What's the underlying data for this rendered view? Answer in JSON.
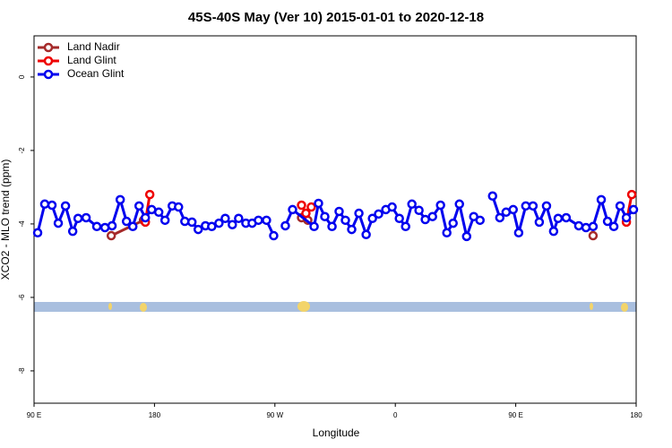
{
  "chart_data": {
    "type": "line",
    "title": "45S-40S May (Ver 10)   2015-01-01 to 2020-12-18",
    "xlabel": "Longitude",
    "ylabel": "XCO2 - MLO trend (ppm)",
    "xlim": [
      90,
      540
    ],
    "ylim": [
      -8.88,
      1.12
    ],
    "xticks": [
      {
        "value": 90,
        "label": "90 E"
      },
      180,
      {
        "value": 270,
        "label": "90 W"
      },
      {
        "value": 360,
        "label": "0"
      },
      {
        "value": 450,
        "label": "90 E"
      },
      {
        "value": 540,
        "label": "180"
      }
    ],
    "yticks": [
      0,
      -2,
      -4,
      -6,
      -8
    ],
    "legend": "top-left",
    "series": [
      {
        "name": "Land Nadir",
        "color": "#a52a2a",
        "x": [
          147.7,
          171.8,
          null,
          289.9,
          294.6,
          null,
          507.8
        ],
        "values": [
          -4.32,
          -3.9,
          null,
          -3.83,
          -3.9,
          null,
          -4.32
        ]
      },
      {
        "name": "Land Glint",
        "color": "#ee0000",
        "x": [
          173.2,
          176.5,
          null,
          289.9,
          293.2,
          297.2,
          null,
          532.7,
          536.7
        ],
        "values": [
          -3.95,
          -3.2,
          null,
          -3.49,
          -3.71,
          -3.54,
          null,
          -3.95,
          -3.2
        ]
      },
      {
        "name": "Ocean Glint",
        "color": "#0000ee",
        "x": [
          92.7,
          98.0,
          103.4,
          108.1,
          113.5,
          118.9,
          122.9,
          128.9,
          136.9,
          143.0,
          148.3,
          154.4,
          159.1,
          163.8,
          168.5,
          173.2,
          177.9,
          183.2,
          187.9,
          193.3,
          198.0,
          202.7,
          208.0,
          212.7,
          218.1,
          222.8,
          228.2,
          232.9,
          238.2,
          242.9,
          248.3,
          253.0,
          257.7,
          263.7,
          269.1,
          null,
          277.8,
          283.2,
          299.3,
          302.6,
          307.3,
          312.7,
          318.0,
          322.7,
          327.4,
          332.8,
          338.2,
          342.9,
          347.5,
          352.9,
          357.6,
          363.0,
          367.7,
          372.4,
          377.7,
          382.4,
          387.8,
          393.8,
          398.5,
          403.2,
          407.9,
          413.3,
          418.6,
          423.3,
          null,
          432.7,
          438.1,
          442.8,
          448.1,
          452.2,
          457.5,
          462.9,
          467.6,
          473.0,
          478.3,
          481.7,
          487.7,
          497.1,
          502.5,
          507.8,
          513.9,
          518.6,
          523.3,
          528.0,
          532.7,
          538.0
        ],
        "values": [
          -4.24,
          -3.46,
          -3.49,
          -3.98,
          -3.51,
          -4.2,
          -3.85,
          -3.83,
          -4.07,
          -4.1,
          -4.05,
          -3.34,
          -3.93,
          -4.07,
          -3.51,
          -3.83,
          -3.61,
          -3.68,
          -3.9,
          -3.51,
          -3.54,
          -3.93,
          -3.95,
          -4.15,
          -4.05,
          -4.07,
          -3.98,
          -3.85,
          -4.02,
          -3.85,
          -3.98,
          -3.98,
          -3.9,
          -3.9,
          -4.32,
          null,
          -4.05,
          -3.61,
          -4.07,
          -3.44,
          -3.8,
          -4.07,
          -3.66,
          -3.9,
          -4.15,
          -3.71,
          -4.29,
          -3.85,
          -3.73,
          -3.61,
          -3.54,
          -3.85,
          -4.07,
          -3.46,
          -3.63,
          -3.88,
          -3.8,
          -3.49,
          -4.24,
          -3.98,
          -3.46,
          -4.34,
          -3.8,
          -3.9,
          null,
          -3.24,
          -3.83,
          -3.68,
          -3.61,
          -4.24,
          -3.51,
          -3.51,
          -3.95,
          -3.51,
          -4.2,
          -3.85,
          -3.83,
          -4.05,
          -4.1,
          -4.07,
          -3.34,
          -3.93,
          -4.07,
          -3.51,
          -3.83,
          -3.61
        ]
      }
    ]
  }
}
